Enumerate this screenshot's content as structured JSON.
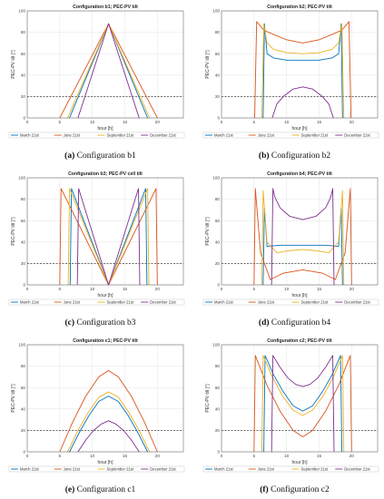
{
  "chart_data": [
    {
      "type": "line",
      "title": "Configuration b1; PEC-PV tilt",
      "caption_label": "(a)",
      "caption_text": "Configuration b1",
      "xlabel": "hour [h]",
      "ylabel": "PEC-PV tilt [°]",
      "xlim": [
        0,
        24
      ],
      "ylim": [
        0,
        100
      ],
      "xticks": [
        0,
        5,
        10,
        15,
        20
      ],
      "yticks": [
        0,
        20,
        40,
        60,
        80,
        100
      ],
      "grid": true,
      "threshold": 20,
      "legend_position": "bottom",
      "series": [
        {
          "name": "March 21st",
          "x": [
            6.5,
            12.5,
            18.5
          ],
          "y": [
            0,
            88,
            0
          ]
        },
        {
          "name": "June 21st",
          "x": [
            5.0,
            12.5,
            20.0
          ],
          "y": [
            0,
            88,
            0
          ]
        },
        {
          "name": "September 21st",
          "x": [
            6.2,
            12.5,
            18.8
          ],
          "y": [
            0,
            88,
            0
          ]
        },
        {
          "name": "December 21st",
          "x": [
            7.8,
            12.5,
            17.2
          ],
          "y": [
            0,
            88,
            0
          ]
        }
      ]
    },
    {
      "type": "line",
      "title": "Configuration b2; PEC-PV tilt",
      "caption_label": "(b)",
      "caption_text": "Configuration b2",
      "xlabel": "hour [h]",
      "ylabel": "PEC-PV tilt [°]",
      "xlim": [
        0,
        24
      ],
      "ylim": [
        0,
        100
      ],
      "xticks": [
        0,
        5,
        10,
        15,
        20
      ],
      "yticks": [
        0,
        20,
        40,
        60,
        80,
        100
      ],
      "grid": true,
      "threshold": 20,
      "legend_position": "bottom",
      "series": [
        {
          "name": "March 21st",
          "x": [
            6.4,
            6.6,
            7.0,
            8.0,
            10.0,
            12.5,
            15.0,
            17.0,
            18.0,
            18.4,
            18.6
          ],
          "y": [
            0,
            88,
            60,
            56,
            54,
            54,
            54,
            56,
            60,
            88,
            0
          ]
        },
        {
          "name": "June 21st",
          "x": [
            5.1,
            5.4,
            6.5,
            8.0,
            10.0,
            12.5,
            15.0,
            17.0,
            18.5,
            19.6,
            19.9
          ],
          "y": [
            0,
            90,
            82,
            78,
            73,
            70,
            73,
            78,
            82,
            90,
            0
          ]
        },
        {
          "name": "September 21st",
          "x": [
            6.2,
            6.5,
            7.0,
            8.0,
            10.0,
            12.5,
            15.0,
            17.0,
            18.0,
            18.5,
            18.8
          ],
          "y": [
            0,
            88,
            70,
            64,
            61,
            60,
            61,
            64,
            70,
            88,
            0
          ]
        },
        {
          "name": "December 21st",
          "x": [
            7.8,
            8.5,
            9.5,
            11.0,
            12.5,
            14.0,
            15.5,
            16.5,
            17.2
          ],
          "y": [
            0,
            13,
            20,
            27,
            29,
            27,
            20,
            13,
            0
          ]
        }
      ]
    },
    {
      "type": "line",
      "title": "Configuration b3; PEC-PV cell tilt",
      "caption_label": "(c)",
      "caption_text": "Configuration b3",
      "xlabel": "hour [h]",
      "ylabel": "PEC-PV tilt [°]",
      "xlim": [
        0,
        24
      ],
      "ylim": [
        0,
        100
      ],
      "xticks": [
        0,
        5,
        10,
        15,
        20
      ],
      "yticks": [
        0,
        20,
        40,
        60,
        80,
        100
      ],
      "grid": true,
      "threshold": 20,
      "legend_position": "bottom",
      "series": [
        {
          "name": "March 21st",
          "x": [
            6.6,
            6.8,
            12.5,
            18.2,
            18.4
          ],
          "y": [
            0,
            90,
            0,
            90,
            0
          ]
        },
        {
          "name": "June 21st",
          "x": [
            5.0,
            5.2,
            12.5,
            19.8,
            20.0
          ],
          "y": [
            0,
            90,
            0,
            90,
            0
          ]
        },
        {
          "name": "September 21st",
          "x": [
            6.3,
            6.5,
            12.5,
            18.5,
            18.7
          ],
          "y": [
            0,
            90,
            0,
            90,
            0
          ]
        },
        {
          "name": "December 21st",
          "x": [
            7.7,
            7.9,
            12.5,
            17.1,
            17.3
          ],
          "y": [
            0,
            90,
            0,
            90,
            0
          ]
        }
      ]
    },
    {
      "type": "line",
      "title": "Configuration b4; PEC-PV tilt",
      "caption_label": "(d)",
      "caption_text": "Configuration b4",
      "xlabel": "hour [h]",
      "ylabel": "PEC-PV tilt [°]",
      "xlim": [
        0,
        24
      ],
      "ylim": [
        0,
        100
      ],
      "xticks": [
        0,
        5,
        10,
        15,
        20
      ],
      "yticks": [
        0,
        20,
        40,
        60,
        80,
        100
      ],
      "grid": true,
      "threshold": 20,
      "legend_position": "bottom",
      "series": [
        {
          "name": "March 21st",
          "x": [
            6.4,
            6.6,
            7.0,
            9.0,
            12.5,
            16.0,
            18.0,
            18.4,
            18.6
          ],
          "y": [
            0,
            72,
            36,
            37,
            37,
            37,
            36,
            72,
            0
          ]
        },
        {
          "name": "June 21st",
          "x": [
            5.0,
            5.2,
            6.0,
            7.5,
            9.5,
            12.5,
            15.5,
            17.5,
            19.0,
            19.8,
            20.0
          ],
          "y": [
            0,
            90,
            30,
            5,
            11,
            14,
            11,
            5,
            30,
            90,
            0
          ]
        },
        {
          "name": "September 21st",
          "x": [
            6.2,
            6.4,
            7.0,
            8.5,
            10.5,
            12.5,
            14.5,
            16.5,
            18.0,
            18.6,
            18.8
          ],
          "y": [
            0,
            88,
            40,
            30,
            32,
            33,
            32,
            30,
            40,
            88,
            0
          ]
        },
        {
          "name": "December 21st",
          "x": [
            7.7,
            7.9,
            8.2,
            9.0,
            10.5,
            12.5,
            14.5,
            16.0,
            16.8,
            17.1,
            17.3
          ],
          "y": [
            0,
            90,
            82,
            72,
            64,
            61,
            64,
            72,
            82,
            90,
            0
          ]
        }
      ]
    },
    {
      "type": "line",
      "title": "Configuration c1; PEC-PV tilt",
      "caption_label": "(e)",
      "caption_text": "Configuration c1",
      "xlabel": "hour [h]",
      "ylabel": "PEC-PV tilt [°]",
      "xlim": [
        0,
        24
      ],
      "ylim": [
        0,
        100
      ],
      "xticks": [
        0,
        5,
        10,
        15,
        20
      ],
      "yticks": [
        0,
        20,
        40,
        60,
        80,
        100
      ],
      "grid": true,
      "threshold": 20,
      "legend_position": "bottom",
      "series": [
        {
          "name": "March 21st",
          "x": [
            6.5,
            8.0,
            9.5,
            11.0,
            12.5,
            14.0,
            15.5,
            17.0,
            18.5
          ],
          "y": [
            0,
            18,
            34,
            47,
            52,
            47,
            34,
            18,
            0
          ]
        },
        {
          "name": "June 21st",
          "x": [
            5.0,
            7.0,
            9.0,
            11.0,
            12.5,
            14.0,
            16.0,
            18.0,
            20.0
          ],
          "y": [
            0,
            28,
            52,
            70,
            76,
            70,
            52,
            28,
            0
          ]
        },
        {
          "name": "September 21st",
          "x": [
            6.2,
            7.8,
            9.4,
            11.0,
            12.5,
            14.0,
            15.6,
            17.2,
            18.8
          ],
          "y": [
            0,
            20,
            37,
            51,
            56,
            51,
            37,
            20,
            0
          ]
        },
        {
          "name": "December 21st",
          "x": [
            7.8,
            9.0,
            10.2,
            11.4,
            12.5,
            13.6,
            14.8,
            16.0,
            17.2
          ],
          "y": [
            0,
            11,
            20,
            26,
            29,
            26,
            20,
            11,
            0
          ]
        }
      ]
    },
    {
      "type": "line",
      "title": "Configuration c2; PEC-PV tilt",
      "caption_label": "(f)",
      "caption_text": "Configuration c2",
      "xlabel": "hour [h]",
      "ylabel": "PEC-PV tilt [°]",
      "xlim": [
        0,
        24
      ],
      "ylim": [
        0,
        100
      ],
      "xticks": [
        0,
        5,
        10,
        15,
        20
      ],
      "yticks": [
        0,
        20,
        40,
        60,
        80,
        100
      ],
      "grid": true,
      "threshold": 20,
      "legend_position": "bottom",
      "series": [
        {
          "name": "March 21st",
          "x": [
            6.5,
            6.7,
            8.0,
            9.5,
            11.0,
            12.5,
            14.0,
            15.5,
            17.0,
            18.3,
            18.5
          ],
          "y": [
            0,
            90,
            72,
            56,
            43,
            38,
            43,
            56,
            72,
            90,
            0
          ]
        },
        {
          "name": "June 21st",
          "x": [
            5.0,
            5.2,
            7.0,
            9.0,
            11.0,
            12.5,
            14.0,
            16.0,
            18.0,
            19.8,
            20.0
          ],
          "y": [
            0,
            90,
            62,
            38,
            20,
            14,
            20,
            38,
            62,
            90,
            0
          ]
        },
        {
          "name": "September 21st",
          "x": [
            6.2,
            6.4,
            7.8,
            9.4,
            11.0,
            12.5,
            14.0,
            15.6,
            17.2,
            18.6,
            18.8
          ],
          "y": [
            0,
            90,
            70,
            52,
            39,
            34,
            39,
            52,
            70,
            90,
            0
          ]
        },
        {
          "name": "December 21st",
          "x": [
            7.7,
            7.9,
            9.0,
            10.2,
            11.4,
            12.5,
            13.6,
            14.8,
            16.0,
            17.1,
            17.3
          ],
          "y": [
            0,
            90,
            79,
            69,
            63,
            61,
            63,
            69,
            79,
            90,
            0
          ]
        }
      ]
    }
  ],
  "colors": {
    "March 21st": "#0072bd",
    "June 21st": "#d95319",
    "September 21st": "#edb120",
    "December 21st": "#7e2f8e",
    "threshold": "#222222",
    "grid": "#e4e4e4",
    "axis": "#555555"
  }
}
